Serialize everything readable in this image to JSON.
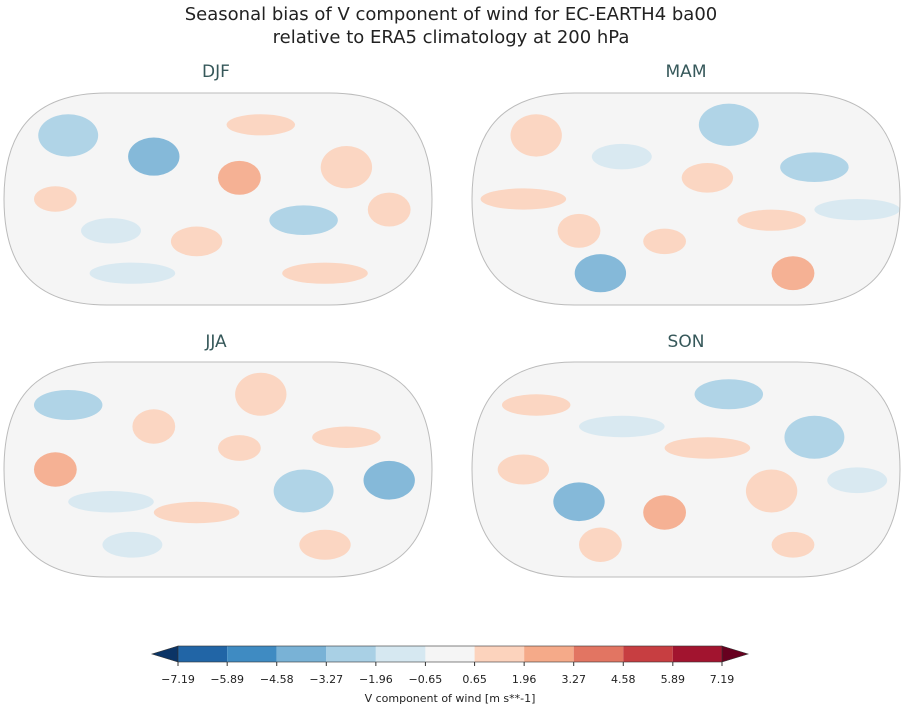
{
  "title": [
    "Seasonal bias of V component of wind for EC-EARTH4 ba00",
    "relative to ERA5 climatology at 200 hPa"
  ],
  "panels": [
    {
      "title": "DJF"
    },
    {
      "title": "MAM"
    },
    {
      "title": "JJA"
    },
    {
      "title": "SON"
    }
  ],
  "colorbar": {
    "label": "V component of wind [m s**-1]",
    "lim": [
      -7.19,
      7.19
    ],
    "ticks": [
      {
        "value": -7.19,
        "label": "−7.19"
      },
      {
        "value": -5.89,
        "label": "−5.89"
      },
      {
        "value": -4.58,
        "label": "−4.58"
      },
      {
        "value": -3.27,
        "label": "−3.27"
      },
      {
        "value": -1.96,
        "label": "−1.96"
      },
      {
        "value": -0.65,
        "label": "−0.65"
      },
      0.65,
      1.96,
      3.27,
      4.58,
      5.89,
      7.19
    ],
    "colors": [
      "#0b3466",
      "#2165a6",
      "#3f8bc2",
      "#79b2d6",
      "#a9d0e5",
      "#d6e8f1",
      "#f5f5f5",
      "#fcd3bd",
      "#f5aa89",
      "#e27562",
      "#c73e41",
      "#a2142f",
      "#67001f"
    ]
  }
}
